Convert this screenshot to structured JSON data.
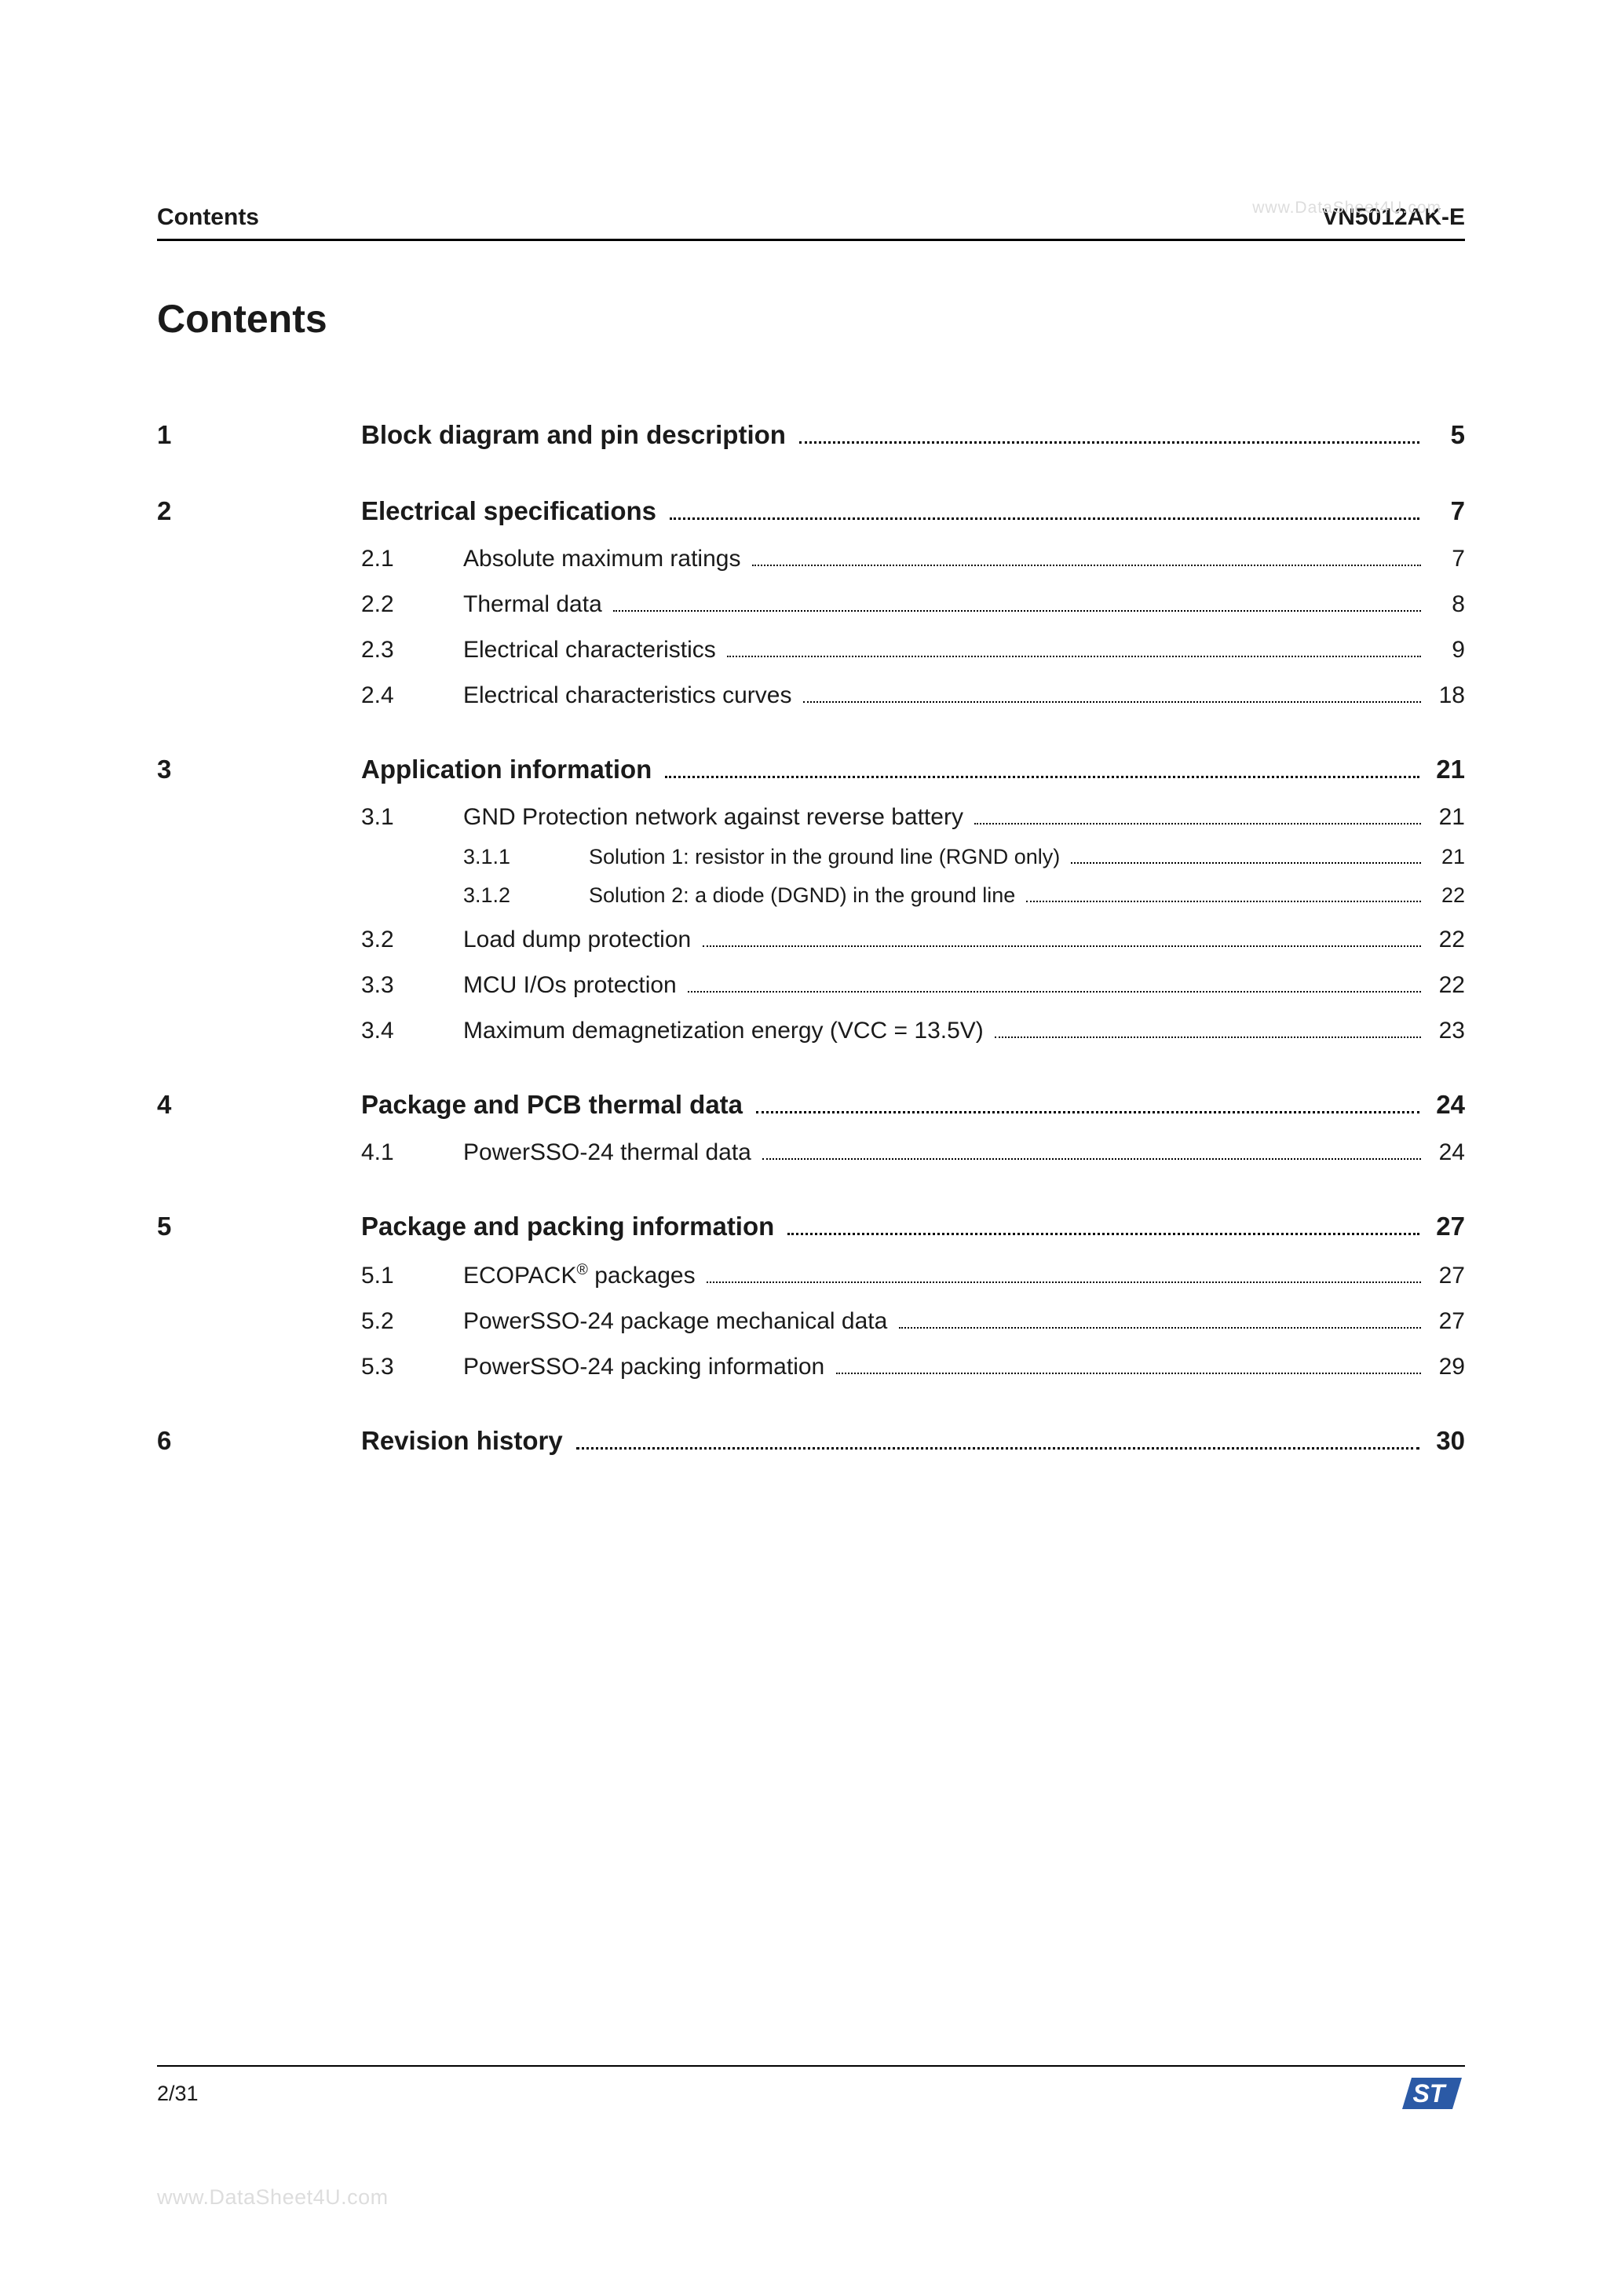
{
  "header": {
    "left": "Contents",
    "right": "VN5012AK-E"
  },
  "watermarks": {
    "top": "www.DataSheet4U.com",
    "bottom": "www.DataSheet4U.com"
  },
  "title": "Contents",
  "footer": {
    "page": "2/31"
  },
  "logo": {
    "bg": "#ffffff",
    "shape_fill": "#2b5aa6",
    "text_fill": "#ffffff"
  },
  "toc": [
    {
      "num": "1",
      "title": "Block diagram and pin description",
      "page": "5",
      "subs": []
    },
    {
      "num": "2",
      "title": "Electrical specifications",
      "page": "7",
      "subs": [
        {
          "num": "2.1",
          "title": "Absolute maximum ratings",
          "page": "7"
        },
        {
          "num": "2.2",
          "title": "Thermal data",
          "page": "8"
        },
        {
          "num": "2.3",
          "title": "Electrical characteristics",
          "page": "9"
        },
        {
          "num": "2.4",
          "title": "Electrical characteristics curves",
          "page": "18"
        }
      ]
    },
    {
      "num": "3",
      "title": "Application information",
      "page": "21",
      "subs": [
        {
          "num": "3.1",
          "title": "GND Protection network against reverse battery",
          "page": "21",
          "subs": [
            {
              "num": "3.1.1",
              "title": "Solution 1: resistor in the ground line (RGND only)",
              "page": "21"
            },
            {
              "num": "3.1.2",
              "title": "Solution 2: a diode (DGND) in the ground line",
              "page": "22"
            }
          ]
        },
        {
          "num": "3.2",
          "title": "Load dump protection",
          "page": "22"
        },
        {
          "num": "3.3",
          "title": "MCU I/Os protection",
          "page": "22"
        },
        {
          "num": "3.4",
          "title": "Maximum demagnetization energy (VCC = 13.5V)",
          "page": "23"
        }
      ]
    },
    {
      "num": "4",
      "title": "Package and PCB thermal data",
      "page": "24",
      "subs": [
        {
          "num": "4.1",
          "title": "PowerSSO-24 thermal data",
          "page": "24"
        }
      ]
    },
    {
      "num": "5",
      "title": "Package and packing information",
      "page": "27",
      "subs": [
        {
          "num": "5.1",
          "title_html": "ECOPACK<span class='sup'>®</span> packages",
          "title": "ECOPACK® packages",
          "page": "27"
        },
        {
          "num": "5.2",
          "title": "PowerSSO-24 package mechanical data",
          "page": "27"
        },
        {
          "num": "5.3",
          "title": "PowerSSO-24 packing information",
          "page": "29"
        }
      ]
    },
    {
      "num": "6",
      "title": "Revision history",
      "page": "30",
      "subs": []
    }
  ]
}
